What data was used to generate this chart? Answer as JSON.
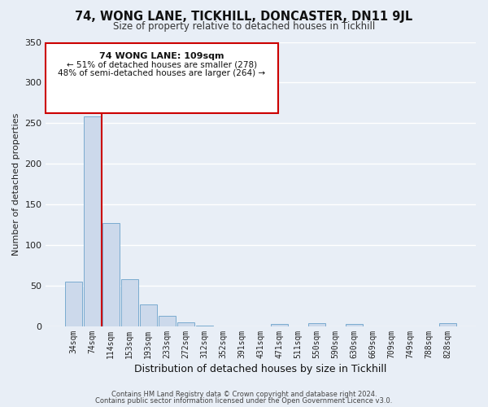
{
  "title": "74, WONG LANE, TICKHILL, DONCASTER, DN11 9JL",
  "subtitle": "Size of property relative to detached houses in Tickhill",
  "xlabel": "Distribution of detached houses by size in Tickhill",
  "ylabel": "Number of detached properties",
  "bar_color": "#ccd9eb",
  "bar_edge_color": "#7aabcf",
  "background_color": "#e8eef6",
  "grid_color": "#ffffff",
  "annotation_box_color": "#ffffff",
  "annotation_border_color": "#cc0000",
  "vline_color": "#cc0000",
  "categories": [
    "34sqm",
    "74sqm",
    "114sqm",
    "153sqm",
    "193sqm",
    "233sqm",
    "272sqm",
    "312sqm",
    "352sqm",
    "391sqm",
    "431sqm",
    "471sqm",
    "511sqm",
    "550sqm",
    "590sqm",
    "630sqm",
    "669sqm",
    "709sqm",
    "749sqm",
    "788sqm",
    "828sqm"
  ],
  "values": [
    55,
    258,
    127,
    58,
    27,
    13,
    5,
    1,
    0,
    0,
    0,
    3,
    0,
    4,
    0,
    3,
    0,
    0,
    0,
    0,
    4
  ],
  "ylim": [
    0,
    350
  ],
  "yticks": [
    0,
    50,
    100,
    150,
    200,
    250,
    300,
    350
  ],
  "annotation_line1": "74 WONG LANE: 109sqm",
  "annotation_line2": "← 51% of detached houses are smaller (278)",
  "annotation_line3": "48% of semi-detached houses are larger (264) →",
  "footer_line1": "Contains HM Land Registry data © Crown copyright and database right 2024.",
  "footer_line2": "Contains public sector information licensed under the Open Government Licence v3.0."
}
